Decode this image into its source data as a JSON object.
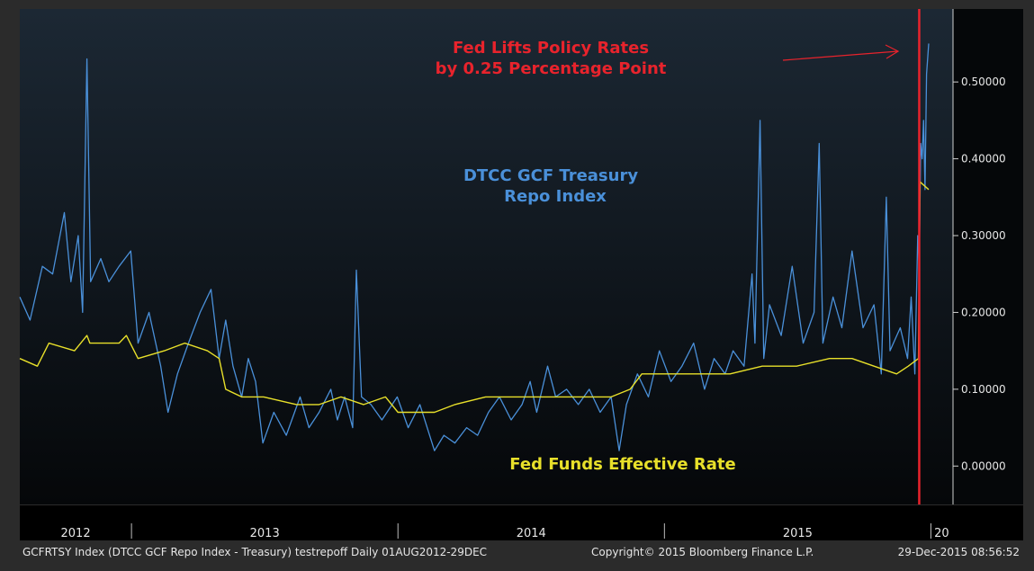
{
  "chart_data": {
    "type": "line",
    "x_range": [
      "2012-08-01",
      "2015-12-29"
    ],
    "year_labels": [
      "2012",
      "2013",
      "2014",
      "2015",
      "20"
    ],
    "y_ticks": [
      "0.00000",
      "0.10000",
      "0.20000",
      "0.30000",
      "0.40000",
      "0.50000"
    ],
    "ylim": [
      -0.05,
      0.595
    ],
    "series": [
      {
        "name": "DTCC GCF Treasury Repo Index",
        "color": "#4a90d9",
        "label_lines": [
          "DTCC GCF Treasury",
          "Repo Index"
        ],
        "points": [
          [
            "2012-08-01",
            0.22
          ],
          [
            "2012-08-15",
            0.19
          ],
          [
            "2012-09-01",
            0.26
          ],
          [
            "2012-09-15",
            0.25
          ],
          [
            "2012-10-01",
            0.33
          ],
          [
            "2012-10-10",
            0.24
          ],
          [
            "2012-10-20",
            0.3
          ],
          [
            "2012-10-26",
            0.2
          ],
          [
            "2012-11-01",
            0.53
          ],
          [
            "2012-11-06",
            0.24
          ],
          [
            "2012-11-20",
            0.27
          ],
          [
            "2012-12-01",
            0.24
          ],
          [
            "2012-12-15",
            0.26
          ],
          [
            "2012-12-31",
            0.28
          ],
          [
            "2013-01-10",
            0.16
          ],
          [
            "2013-01-25",
            0.2
          ],
          [
            "2013-02-10",
            0.13
          ],
          [
            "2013-02-20",
            0.07
          ],
          [
            "2013-03-05",
            0.12
          ],
          [
            "2013-03-20",
            0.16
          ],
          [
            "2013-04-05",
            0.2
          ],
          [
            "2013-04-20",
            0.23
          ],
          [
            "2013-05-01",
            0.14
          ],
          [
            "2013-05-10",
            0.19
          ],
          [
            "2013-05-20",
            0.13
          ],
          [
            "2013-06-01",
            0.09
          ],
          [
            "2013-06-10",
            0.14
          ],
          [
            "2013-06-20",
            0.11
          ],
          [
            "2013-06-30",
            0.03
          ],
          [
            "2013-07-15",
            0.07
          ],
          [
            "2013-08-01",
            0.04
          ],
          [
            "2013-08-20",
            0.09
          ],
          [
            "2013-09-01",
            0.05
          ],
          [
            "2013-09-15",
            0.07
          ],
          [
            "2013-10-01",
            0.1
          ],
          [
            "2013-10-10",
            0.06
          ],
          [
            "2013-10-20",
            0.09
          ],
          [
            "2013-10-31",
            0.05
          ],
          [
            "2013-11-05",
            0.255
          ],
          [
            "2013-11-12",
            0.09
          ],
          [
            "2013-11-25",
            0.08
          ],
          [
            "2013-12-10",
            0.06
          ],
          [
            "2013-12-31",
            0.09
          ],
          [
            "2014-01-15",
            0.05
          ],
          [
            "2014-01-31",
            0.08
          ],
          [
            "2014-02-20",
            0.02
          ],
          [
            "2014-03-05",
            0.04
          ],
          [
            "2014-03-20",
            0.03
          ],
          [
            "2014-04-05",
            0.05
          ],
          [
            "2014-04-20",
            0.04
          ],
          [
            "2014-05-05",
            0.07
          ],
          [
            "2014-05-20",
            0.09
          ],
          [
            "2014-06-05",
            0.06
          ],
          [
            "2014-06-20",
            0.08
          ],
          [
            "2014-07-01",
            0.11
          ],
          [
            "2014-07-10",
            0.07
          ],
          [
            "2014-07-25",
            0.13
          ],
          [
            "2014-08-05",
            0.09
          ],
          [
            "2014-08-20",
            0.1
          ],
          [
            "2014-09-05",
            0.08
          ],
          [
            "2014-09-20",
            0.1
          ],
          [
            "2014-10-05",
            0.07
          ],
          [
            "2014-10-20",
            0.09
          ],
          [
            "2014-10-31",
            0.02
          ],
          [
            "2014-11-10",
            0.08
          ],
          [
            "2014-11-25",
            0.12
          ],
          [
            "2014-12-10",
            0.09
          ],
          [
            "2014-12-25",
            0.15
          ],
          [
            "2015-01-10",
            0.11
          ],
          [
            "2015-01-25",
            0.13
          ],
          [
            "2015-02-10",
            0.16
          ],
          [
            "2015-02-25",
            0.1
          ],
          [
            "2015-03-10",
            0.14
          ],
          [
            "2015-03-25",
            0.12
          ],
          [
            "2015-04-05",
            0.15
          ],
          [
            "2015-04-20",
            0.13
          ],
          [
            "2015-05-01",
            0.25
          ],
          [
            "2015-05-05",
            0.16
          ],
          [
            "2015-05-12",
            0.45
          ],
          [
            "2015-05-17",
            0.14
          ],
          [
            "2015-05-25",
            0.21
          ],
          [
            "2015-06-10",
            0.17
          ],
          [
            "2015-06-25",
            0.26
          ],
          [
            "2015-07-10",
            0.16
          ],
          [
            "2015-07-25",
            0.2
          ],
          [
            "2015-08-01",
            0.42
          ],
          [
            "2015-08-06",
            0.16
          ],
          [
            "2015-08-20",
            0.22
          ],
          [
            "2015-09-01",
            0.18
          ],
          [
            "2015-09-15",
            0.28
          ],
          [
            "2015-09-30",
            0.18
          ],
          [
            "2015-10-15",
            0.21
          ],
          [
            "2015-10-25",
            0.12
          ],
          [
            "2015-11-01",
            0.35
          ],
          [
            "2015-11-06",
            0.15
          ],
          [
            "2015-11-20",
            0.18
          ],
          [
            "2015-11-30",
            0.14
          ],
          [
            "2015-12-05",
            0.22
          ],
          [
            "2015-12-10",
            0.12
          ],
          [
            "2015-12-14",
            0.3
          ],
          [
            "2015-12-16",
            0.26
          ],
          [
            "2015-12-18",
            0.42
          ],
          [
            "2015-12-20",
            0.4
          ],
          [
            "2015-12-22",
            0.45
          ],
          [
            "2015-12-24",
            0.36
          ],
          [
            "2015-12-26",
            0.51
          ],
          [
            "2015-12-29",
            0.55
          ]
        ]
      },
      {
        "name": "Fed Funds Effective Rate",
        "color": "#e8e02a",
        "label_lines": [
          "Fed Funds Effective Rate"
        ],
        "points": [
          [
            "2012-08-01",
            0.14
          ],
          [
            "2012-08-25",
            0.13
          ],
          [
            "2012-09-10",
            0.16
          ],
          [
            "2012-10-15",
            0.15
          ],
          [
            "2012-11-01",
            0.17
          ],
          [
            "2012-11-05",
            0.16
          ],
          [
            "2012-12-15",
            0.16
          ],
          [
            "2012-12-25",
            0.17
          ],
          [
            "2013-01-10",
            0.14
          ],
          [
            "2013-02-15",
            0.15
          ],
          [
            "2013-03-15",
            0.16
          ],
          [
            "2013-04-15",
            0.15
          ],
          [
            "2013-05-01",
            0.14
          ],
          [
            "2013-05-10",
            0.1
          ],
          [
            "2013-06-01",
            0.09
          ],
          [
            "2013-07-01",
            0.09
          ],
          [
            "2013-08-15",
            0.08
          ],
          [
            "2013-09-15",
            0.08
          ],
          [
            "2013-10-15",
            0.09
          ],
          [
            "2013-11-15",
            0.08
          ],
          [
            "2013-12-15",
            0.09
          ],
          [
            "2014-01-01",
            0.07
          ],
          [
            "2014-01-31",
            0.07
          ],
          [
            "2014-02-20",
            0.07
          ],
          [
            "2014-03-20",
            0.08
          ],
          [
            "2014-05-01",
            0.09
          ],
          [
            "2014-07-01",
            0.09
          ],
          [
            "2014-08-15",
            0.09
          ],
          [
            "2014-09-15",
            0.09
          ],
          [
            "2014-10-20",
            0.09
          ],
          [
            "2014-11-15",
            0.1
          ],
          [
            "2014-12-01",
            0.12
          ],
          [
            "2015-02-01",
            0.12
          ],
          [
            "2015-04-01",
            0.12
          ],
          [
            "2015-05-15",
            0.13
          ],
          [
            "2015-07-01",
            0.13
          ],
          [
            "2015-08-15",
            0.14
          ],
          [
            "2015-09-15",
            0.14
          ],
          [
            "2015-10-15",
            0.13
          ],
          [
            "2015-11-15",
            0.12
          ],
          [
            "2015-12-01",
            0.13
          ],
          [
            "2015-12-15",
            0.14
          ],
          [
            "2015-12-17",
            0.37
          ],
          [
            "2015-12-29",
            0.36
          ]
        ]
      }
    ],
    "annotation": {
      "text_lines": [
        "Fed Lifts Policy Rates",
        "by 0.25 Percentage Point"
      ],
      "color": "#e8232c",
      "event_date": "2015-12-16"
    }
  },
  "footer": {
    "left": "GCFRTSY Index (DTCC GCF Repo Index - Treasury) testrepoff  Daily 01AUG2012-29DEC",
    "middle": "Copyright© 2015 Bloomberg Finance L.P.",
    "right": "29-Dec-2015 08:56:52"
  }
}
